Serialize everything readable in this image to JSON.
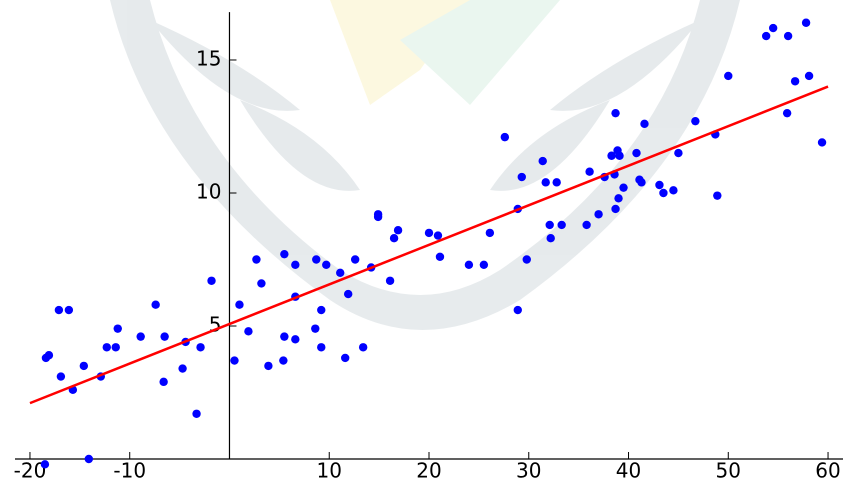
{
  "chart_data": {
    "type": "scatter",
    "xlim": [
      -21.5,
      61.5
    ],
    "ylim": [
      0,
      16.8
    ],
    "xticks": [
      -20,
      -10,
      10,
      20,
      30,
      40,
      50,
      60
    ],
    "yticks": [
      5,
      10,
      15
    ],
    "series": [
      {
        "type": "scatter",
        "color": "#0000ff",
        "x": [
          -18.4,
          -18.1,
          -17.1,
          -16.1,
          -16.9,
          -15.7,
          -14.6,
          -18.5,
          -14.1,
          -12.9,
          -12.3,
          -11.4,
          -11.2,
          -8.9,
          -7.4,
          -6.5,
          -6.6,
          -4.7,
          -4.4,
          -3.3,
          -2.9,
          -1.8,
          0.5,
          1.0,
          1.9,
          2.7,
          3.2,
          3.9,
          5.5,
          5.5,
          5.4,
          6.6,
          6.6,
          6.6,
          8.7,
          8.6,
          9.2,
          9.2,
          9.7,
          11.1,
          11.6,
          11.9,
          12.6,
          13.4,
          14.2,
          14.9,
          14.9,
          16.1,
          16.5,
          16.9,
          20.0,
          20.9,
          21.1,
          24.0,
          25.5,
          26.1,
          27.6,
          28.9,
          28.9,
          29.3,
          29.8,
          31.4,
          31.7,
          32.1,
          32.2,
          32.8,
          33.3,
          35.8,
          36.1,
          37.0,
          37.6,
          38.3,
          38.7,
          38.6,
          38.7,
          38.9,
          39.1,
          39.0,
          39.5,
          40.8,
          41.1,
          41.3,
          41.6,
          43.1,
          43.5,
          44.5,
          45.0,
          46.7,
          48.7,
          48.9,
          50.0,
          53.8,
          54.5,
          56.0,
          55.9,
          56.7,
          57.8,
          58.1,
          59.4
        ],
        "values": [
          3.8,
          3.9,
          5.6,
          5.6,
          3.1,
          2.6,
          3.5,
          -0.2,
          0.0,
          3.1,
          4.2,
          4.2,
          4.9,
          4.6,
          5.8,
          4.6,
          2.9,
          3.4,
          4.4,
          1.7,
          4.2,
          6.7,
          3.7,
          5.8,
          4.8,
          7.5,
          6.6,
          3.5,
          7.7,
          4.6,
          3.7,
          7.3,
          6.1,
          4.5,
          7.5,
          4.9,
          5.6,
          4.2,
          7.3,
          7.0,
          3.8,
          6.2,
          7.5,
          4.2,
          7.2,
          9.2,
          9.1,
          6.7,
          8.3,
          8.6,
          8.5,
          8.4,
          7.6,
          7.3,
          7.3,
          8.5,
          12.1,
          9.4,
          5.6,
          10.6,
          7.5,
          11.2,
          10.4,
          8.8,
          8.3,
          10.4,
          8.8,
          8.8,
          10.8,
          9.2,
          10.6,
          11.4,
          13.0,
          10.7,
          9.4,
          11.6,
          11.4,
          9.8,
          10.2,
          11.5,
          10.5,
          10.4,
          12.6,
          10.3,
          10.0,
          10.1,
          11.5,
          12.7,
          12.2,
          9.9,
          14.4,
          15.9,
          16.2,
          15.9,
          13.0,
          14.2,
          16.4,
          14.4,
          11.9
        ]
      },
      {
        "type": "line",
        "color": "#ff0000",
        "x": [
          -20,
          60
        ],
        "values": [
          2.1,
          14.0
        ]
      }
    ]
  }
}
